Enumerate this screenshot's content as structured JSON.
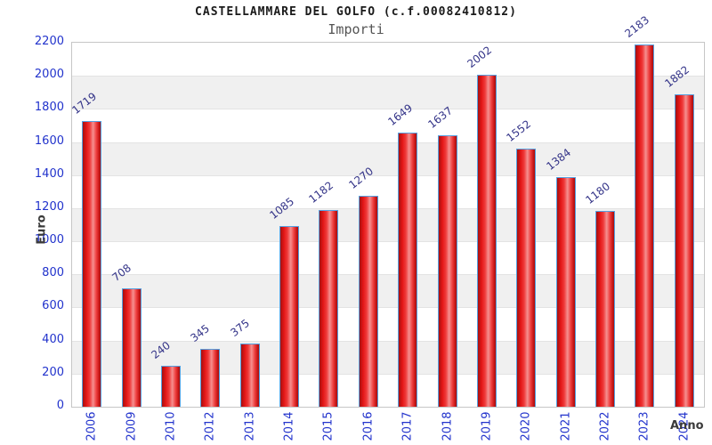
{
  "header": {
    "title": "CASTELLAMMARE DEL GOLFO (c.f.00082410812)",
    "subtitle": "Importi"
  },
  "chart_data": {
    "type": "bar",
    "title": "CASTELLAMMARE DEL GOLFO (c.f.00082410812)",
    "subtitle": "Importi",
    "xlabel": "Anno",
    "ylabel": "Euro",
    "categories": [
      "2006",
      "2009",
      "2010",
      "2012",
      "2013",
      "2014",
      "2015",
      "2016",
      "2017",
      "2018",
      "2019",
      "2020",
      "2021",
      "2022",
      "2023",
      "2024"
    ],
    "values": [
      1719,
      708,
      240,
      345,
      375,
      1085,
      1182,
      1270,
      1649,
      1637,
      2002,
      1552,
      1384,
      1180,
      2183,
      1882
    ],
    "ylim": [
      0,
      2200
    ],
    "ytick_step": 200,
    "grid": "alternating-horizontal-bands",
    "legend": "none",
    "colors": {
      "bar_dark": "#a31212",
      "bar_mid": "#e31515",
      "bar_light": "#f59090",
      "bar_border": "#55a0e0",
      "band_gray": "#f0f0f0",
      "band_white": "#ffffff",
      "band_line": "#e3e3e3",
      "axis_tick_text": "#2233cc",
      "value_label_text": "#333388",
      "axis_title_text": "#3a3a3a",
      "plot_border": "#c6c6c6"
    }
  }
}
